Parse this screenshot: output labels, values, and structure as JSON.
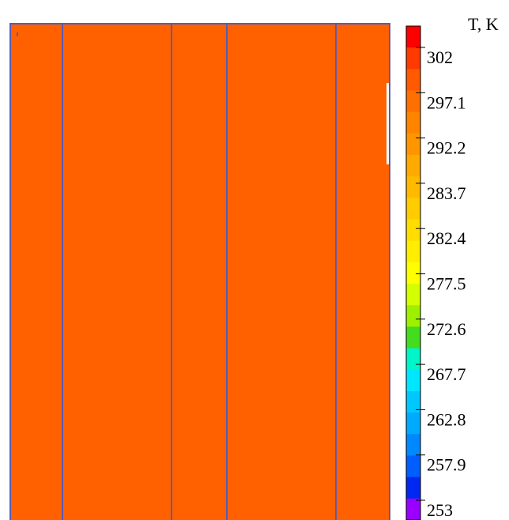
{
  "chart_data": {
    "type": "heatmap",
    "title": "",
    "field": {
      "fill_color": "#ff6000",
      "fill_value": 300,
      "border_color": "#5b5bb0",
      "column_divisions": 5
    },
    "colorbar": {
      "label": "T, K",
      "range": [
        250.5,
        306
      ],
      "tick_values": [
        302,
        297.1,
        292.2,
        283.7,
        282.4,
        277.5,
        272.6,
        267.7,
        262.8,
        257.9,
        253
      ],
      "tick_labels": [
        "302",
        "297.1",
        "292.2",
        "283.7",
        "282.4",
        "277.5",
        "272.6",
        "267.7",
        "262.8",
        "257.9",
        "253"
      ],
      "colors_top_to_bottom": [
        "#ff0000",
        "#ff3a00",
        "#ff5a00",
        "#ff7000",
        "#ff8400",
        "#ff9600",
        "#ffaa00",
        "#ffba00",
        "#ffcc00",
        "#ffdd00",
        "#ffee00",
        "#ffff00",
        "#d4ff00",
        "#9cf000",
        "#44dc1e",
        "#00f5c8",
        "#00e6ff",
        "#00c8ff",
        "#00aaff",
        "#0088ff",
        "#005eff",
        "#0028f0",
        "#9a00ff"
      ]
    }
  }
}
